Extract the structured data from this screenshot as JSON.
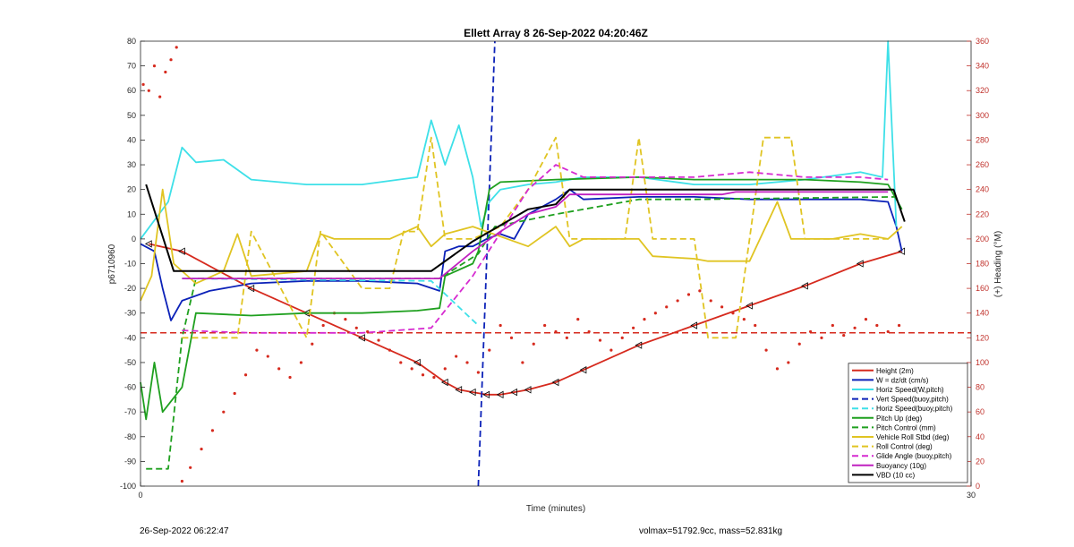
{
  "chart_data": {
    "type": "line",
    "title": "Ellett Array 8 26-Sep-2022 04:20:46Z",
    "xlabel": "Time (minutes)",
    "ylabel": "p6710960",
    "ylabel_right": "(+) Heading (°M)",
    "xlim": [
      0,
      30
    ],
    "ylim": [
      -100,
      80
    ],
    "ylim_right": [
      0,
      360
    ],
    "xticks": [
      0,
      30
    ],
    "yticks": [
      -100,
      -90,
      -80,
      -70,
      -60,
      -50,
      -40,
      -30,
      -20,
      -10,
      0,
      10,
      20,
      30,
      40,
      50,
      60,
      70,
      80
    ],
    "yticks_right": [
      0,
      20,
      40,
      60,
      80,
      100,
      120,
      140,
      160,
      180,
      200,
      220,
      240,
      260,
      280,
      300,
      320,
      340,
      360
    ],
    "grid": false,
    "legend_position": "bottom-right",
    "series": [
      {
        "name": "Height (2m)",
        "color": "#d62a1e",
        "style": "solid",
        "markers": true,
        "x": [
          0.3,
          1.5,
          4,
          6,
          8,
          10,
          11,
          11.5,
          12,
          12.5,
          13,
          13.5,
          14,
          15,
          16,
          18,
          20,
          22,
          24,
          26,
          27.5
        ],
        "y": [
          -2,
          -5,
          -20,
          -30,
          -40,
          -50,
          -58,
          -61,
          -62,
          -63,
          -63,
          -62,
          -61,
          -58,
          -53,
          -43,
          -35,
          -27,
          -19,
          -10,
          -5
        ]
      },
      {
        "name": "W = dz/dt (cm/s)",
        "color": "#0c22b8",
        "style": "solid",
        "x": [
          0,
          0.5,
          0.8,
          1.1,
          1.5,
          2.5,
          4,
          6,
          8,
          10,
          10.8,
          11,
          11.5,
          12,
          12.5,
          13,
          13.5,
          14,
          14.5,
          15,
          15.5,
          16,
          18,
          20,
          22,
          24,
          26,
          27,
          27.3,
          27.5
        ],
        "y": [
          -2,
          -5,
          -20,
          -33,
          -25,
          -21,
          -18,
          -17,
          -17,
          -18,
          -21,
          -5,
          -3,
          -3,
          0,
          2,
          0,
          10,
          13,
          16,
          20,
          16,
          17,
          17,
          16,
          16,
          16,
          15,
          5,
          -5
        ]
      },
      {
        "name": "Horiz Speed(W,pitch)",
        "color": "#3ee0e8",
        "style": "solid",
        "x": [
          0,
          1,
          1.5,
          2,
          3,
          4,
          6,
          8,
          10,
          10.5,
          11,
          11.5,
          12,
          12.3,
          12.6,
          13,
          14,
          15,
          16,
          18,
          20,
          22,
          24,
          26,
          26.8,
          27,
          27.3
        ],
        "y": [
          0,
          15,
          37,
          31,
          32,
          24,
          22,
          22,
          25,
          48,
          30,
          46,
          25,
          5,
          15,
          20,
          22,
          23,
          25,
          25,
          22,
          22,
          24,
          27,
          25,
          80,
          5
        ]
      },
      {
        "name": "Vert Speed(buoy,pitch)",
        "color": "#0c22b8",
        "style": "dashed",
        "x": [
          12.2,
          12.8
        ],
        "y": [
          -100,
          80
        ]
      },
      {
        "name": "Horiz Speed(buoy,pitch)",
        "color": "#3ee0e8",
        "style": "dashed",
        "x": [
          1.5,
          10.5,
          12.2
        ],
        "y": [
          -16,
          -17,
          -35
        ]
      },
      {
        "name": "Pitch Up (deg)",
        "color": "#1fa01f",
        "style": "solid",
        "x": [
          0,
          0.2,
          0.5,
          0.8,
          1.5,
          2,
          4,
          6,
          8,
          10,
          10.8,
          11,
          12,
          12.2,
          12.6,
          13,
          15,
          18,
          20,
          22,
          24,
          26,
          27,
          27.5
        ],
        "y": [
          -58,
          -73,
          -50,
          -70,
          -60,
          -30,
          -31,
          -30,
          -30,
          -29,
          -28,
          -15,
          -10,
          -5,
          20,
          23,
          24,
          25,
          24,
          24,
          24,
          23,
          22,
          12
        ]
      },
      {
        "name": "Pitch Control (mm)",
        "color": "#1fa01f",
        "style": "dashed",
        "x": [
          0.2,
          1,
          1.5,
          2,
          10.8,
          12.2,
          12.8,
          15,
          18,
          20,
          27.3
        ],
        "y": [
          -93,
          -93,
          -40,
          -16,
          -16,
          -6,
          5,
          10,
          16,
          16,
          17
        ]
      },
      {
        "name": "Vehicle Roll Stbd (deg)",
        "color": "#e0c422",
        "style": "solid",
        "x": [
          0,
          0.4,
          0.8,
          1.2,
          2,
          3,
          3.5,
          4,
          6,
          6.5,
          7,
          7.5,
          9,
          10,
          10.5,
          11,
          12,
          14,
          15,
          15.5,
          16,
          18,
          18.5,
          20,
          20.5,
          22,
          23,
          23.5,
          24,
          25,
          26,
          27,
          27.5
        ],
        "y": [
          -25,
          -15,
          20,
          -10,
          -18,
          -13,
          2,
          -15,
          -13,
          2,
          0,
          0,
          0,
          5,
          -3,
          2,
          5,
          -3,
          5,
          -3,
          0,
          0,
          -7,
          -8,
          -9,
          -9,
          15,
          0,
          0,
          0,
          2,
          0,
          5
        ]
      },
      {
        "name": "Roll Control (deg)",
        "color": "#e0c422",
        "style": "dashed",
        "x": [
          1.5,
          2,
          3.5,
          4,
          6,
          6.5,
          8,
          9,
          9.5,
          10,
          10.5,
          11,
          12,
          13,
          14,
          15,
          15.5,
          16,
          17.5,
          18,
          18.5,
          20,
          20.5,
          21,
          21.5,
          22,
          22.5,
          23.5,
          24,
          24.5,
          27
        ],
        "y": [
          -40,
          -40,
          -40,
          3,
          -40,
          3,
          -20,
          -20,
          3,
          3,
          41,
          0,
          0,
          5,
          20,
          41,
          0,
          0,
          0,
          41,
          0,
          0,
          -40,
          -40,
          -40,
          0,
          41,
          41,
          0,
          0,
          0
        ]
      },
      {
        "name": "Glide Angle (buoy,pitch)",
        "color": "#d62ad0",
        "style": "dashed",
        "x": [
          1.5,
          4,
          8,
          10.5,
          12,
          14,
          15,
          16,
          18,
          20,
          22,
          24,
          26,
          27
        ],
        "y": [
          -37,
          -38,
          -38,
          -36,
          -15,
          20,
          30,
          25,
          25,
          25,
          27,
          25,
          25,
          24
        ]
      },
      {
        "name": "Buoyancy (10g)",
        "color": "#c020c0",
        "style": "solid",
        "x": [
          1.5,
          10.8,
          12,
          13,
          14,
          15,
          15.5,
          21,
          21.5,
          27
        ],
        "y": [
          -16,
          -16,
          -5,
          3,
          10,
          13,
          18,
          18,
          19,
          19
        ]
      },
      {
        "name": "VBD (10 cc)",
        "color": "#000000",
        "style": "solid",
        "x": [
          0.2,
          1.2,
          10.5,
          12,
          14,
          15,
          15.5,
          25.5,
          26,
          27.2,
          27.6
        ],
        "y": [
          22,
          -13,
          -13,
          -1,
          12,
          14,
          20,
          20,
          20,
          20,
          7
        ]
      }
    ],
    "heading": {
      "name": "Heading",
      "axis": "right",
      "color": "#d62a1e",
      "style": "dotted",
      "x": [
        0.1,
        0.3,
        0.5,
        0.7,
        0.9,
        1.1,
        1.3,
        1.5,
        1.8,
        2.2,
        2.6,
        3.0,
        3.4,
        3.8,
        4.2,
        4.6,
        5.0,
        5.4,
        5.8,
        6.2,
        6.6,
        7.0,
        7.4,
        7.8,
        8.2,
        8.6,
        9.0,
        9.4,
        9.8,
        10.2,
        10.6,
        11.0,
        11.4,
        11.8,
        12.2,
        12.6,
        13.0,
        13.4,
        13.8,
        14.2,
        14.6,
        15.0,
        15.4,
        15.8,
        16.2,
        16.6,
        17.0,
        17.4,
        17.8,
        18.2,
        18.6,
        19.0,
        19.4,
        19.8,
        20.2,
        20.6,
        21.0,
        21.4,
        21.8,
        22.2,
        22.6,
        23.0,
        23.4,
        23.8,
        24.2,
        24.6,
        25.0,
        25.4,
        25.8,
        26.2,
        26.6,
        27.0,
        27.4
      ],
      "y": [
        325,
        320,
        340,
        315,
        335,
        345,
        355,
        4,
        15,
        30,
        45,
        60,
        75,
        90,
        110,
        105,
        95,
        88,
        100,
        115,
        130,
        140,
        135,
        128,
        125,
        118,
        110,
        100,
        95,
        90,
        88,
        95,
        105,
        100,
        92,
        110,
        130,
        120,
        100,
        115,
        130,
        125,
        120,
        135,
        125,
        118,
        110,
        120,
        128,
        135,
        140,
        145,
        150,
        155,
        158,
        150,
        145,
        140,
        135,
        130,
        110,
        95,
        100,
        115,
        125,
        120,
        130,
        122,
        128,
        135,
        130,
        125,
        130
      ]
    },
    "reference_line": {
      "y": -38,
      "color": "#d62a1e",
      "style": "dashed"
    }
  },
  "footer": {
    "left": "26-Sep-2022 06:22:47",
    "right": "volmax=51792.9cc, mass=52.831kg"
  }
}
